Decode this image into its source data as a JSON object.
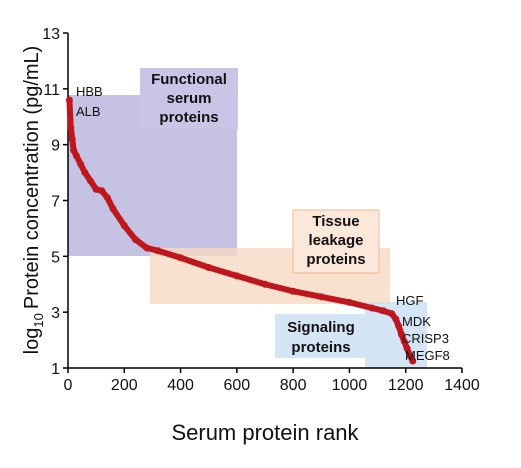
{
  "chart_data": {
    "type": "line",
    "xlabel": "Serum protein rank",
    "ylabel": {
      "base": "log",
      "subscript": "10",
      "text": "Protein concentration (pg/mL)"
    },
    "x": [
      5,
      10,
      15,
      20,
      30,
      45,
      60,
      80,
      100,
      120,
      140,
      160,
      200,
      240,
      280,
      320,
      400,
      500,
      600,
      700,
      800,
      900,
      1000,
      1080,
      1120,
      1150,
      1165,
      1175,
      1185,
      1195,
      1205,
      1215,
      1225
    ],
    "series": [
      {
        "color": "#c0161e",
        "values": [
          10.6,
          9.6,
          9.2,
          8.8,
          8.6,
          8.3,
          8.0,
          7.7,
          7.4,
          7.35,
          7.1,
          6.7,
          6.1,
          5.6,
          5.3,
          5.2,
          4.95,
          4.6,
          4.3,
          4.0,
          3.75,
          3.55,
          3.35,
          3.15,
          3.05,
          2.95,
          2.75,
          2.5,
          2.2,
          1.95,
          1.7,
          1.45,
          1.25
        ]
      }
    ],
    "xlim": [
      0,
      1400
    ],
    "xticks": [
      0,
      200,
      400,
      600,
      800,
      1000,
      1200,
      1400
    ],
    "ylim": [
      1,
      13
    ],
    "yticks": [
      1,
      3,
      5,
      7,
      9,
      11,
      13
    ],
    "regions": [
      {
        "lines": [
          "Functional",
          "serum",
          "proteins"
        ]
      },
      {
        "lines": [
          "Tissue",
          "leakage",
          "proteins"
        ]
      },
      {
        "lines": [
          "Signaling",
          "proteins"
        ]
      }
    ],
    "point_labels": [
      "HBB",
      "ALB",
      "HGF",
      "MDK",
      "CRISP3",
      "MEGF8"
    ]
  }
}
